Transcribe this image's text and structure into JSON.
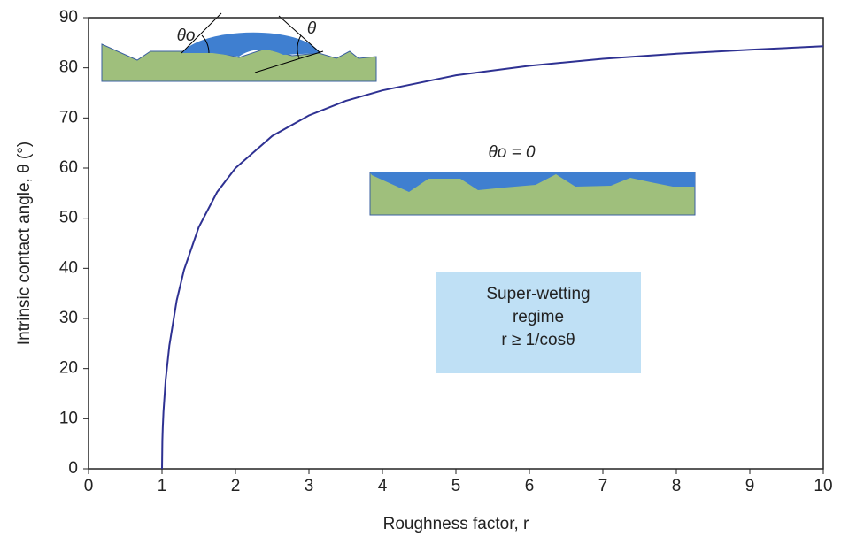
{
  "chart_data": {
    "type": "line",
    "x_label": "Roughness factor, r",
    "y_label": "Intrinsic contact angle, θ (°)",
    "x": [
      1,
      1.005,
      1.01,
      1.02,
      1.05,
      1.1,
      1.2,
      1.3,
      1.5,
      1.75,
      2,
      2.5,
      3,
      3.5,
      4,
      5,
      6,
      7,
      8,
      9,
      10
    ],
    "values": [
      0,
      5.7,
      8.1,
      11.4,
      17.8,
      24.6,
      33.6,
      39.7,
      48.2,
      55.2,
      60,
      66.4,
      70.5,
      73.4,
      75.5,
      78.5,
      80.4,
      81.8,
      82.8,
      83.6,
      84.3
    ],
    "color": "#2e3192",
    "xlim": [
      0,
      10
    ],
    "xticks": [
      0,
      1,
      2,
      3,
      4,
      5,
      6,
      7,
      8,
      9,
      10
    ],
    "ylim": [
      0,
      90
    ],
    "yticks": [
      0,
      10,
      20,
      30,
      40,
      50,
      60,
      70,
      80,
      90
    ],
    "grid": false,
    "annotations": {
      "drop_theta_o": "θo",
      "drop_theta": "θ",
      "film_label": "θo = 0",
      "regime": [
        "Super-wetting",
        "regime",
        "r ≥ 1/cosθ"
      ]
    }
  }
}
